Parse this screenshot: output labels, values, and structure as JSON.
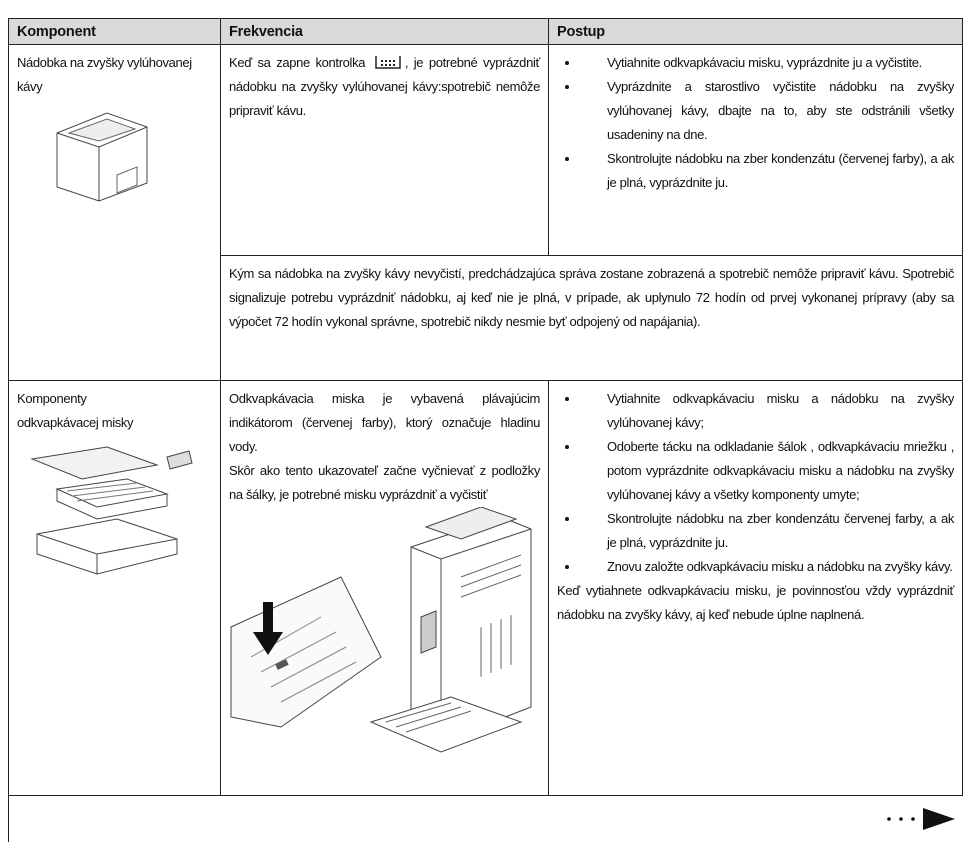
{
  "table": {
    "header": [
      "Komponent",
      "Frekvencia",
      "Postup"
    ],
    "rows": [
      {
        "component": "Nádobka na zvyšky vylúhovanej kávy",
        "frequency": [
          "Keď sa zapne kontrolka",
          ", je potrebné vyprázdniť nádobku na zvyšky vylúhovanej kávy:spotrebič nemôže pripraviť kávu."
        ],
        "procedure": [
          "Vytiahnite odkvapkávaciu misku, vyprázdnite ju a vyčistite.",
          "Vyprázdnite a starostlivo vyčistite nádobku na zvyšky vylúhovanej kávy, dbajte na to, aby ste odstránili všetky usadeniny na dne.",
          "Skontrolujte nádobku na zber kondenzátu (červenej farby), a ak je plná, vyprázdnite ju."
        ],
        "note": "Kým sa nádobka na zvyšky kávy nevyčistí, predchádzajúca správa zostane zobrazená a spotrebič nemôže pripraviť kávu. Spotrebič signalizuje potrebu vyprázdniť nádobku, aj keď nie je plná, v prípade, ak uplynulo 72 hodín od prvej vykonanej prípravy (aby sa výpočet 72 hodín vykonal správne, spotrebič nikdy nesmie byť odpojený od napájania)."
      },
      {
        "component": "Komponenty odkvapkávacej misky",
        "frequency": [
          "Odkvapkávacia miska je vybavená plávajúcim indikátorom (červenej farby), ktorý označuje hladinu vody.",
          "Skôr ako tento ukazovateľ začne vyčnievať z podložky na šálky, je potrebné misku vyprázdniť a vyčistiť"
        ],
        "procedure": [
          "Vytiahnite odkvapkávaciu misku a nádobku na zvyšky vylúhovanej kávy;",
          "Odoberte tácku na odkladanie šálok , odkvapkávaciu mriežku , potom vyprázdnite odkvapkávaciu misku a nádobku na zvyšky vylúhovanej kávy a všetky komponenty umyte;",
          "Skontrolujte nádobku na zber kondenzátu červenej farby, a ak je plná, vyprázdnite ju.",
          "Znovu založte odkvapkávaciu misku a nádobku na zvyšky kávy."
        ],
        "note": "Keď vytiahnete odkvapkávaciu misku, je povinnosťou vždy vyprázdniť nádobku na zvyšky kávy, aj keď nebude úplne naplnená."
      }
    ]
  }
}
